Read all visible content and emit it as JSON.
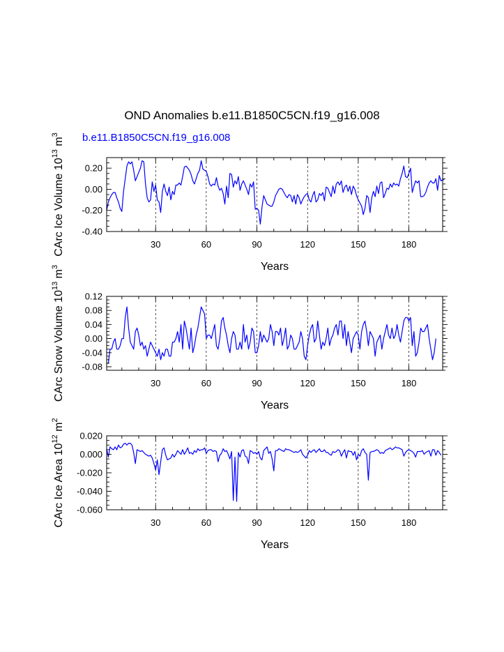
{
  "page_title": "OND Anomalies b.e11.B1850C5CN.f19_g16.008",
  "case_label": "b.e11.B1850C5CN.f19_g16.008",
  "line_color": "#0000ff",
  "chart_data": [
    {
      "type": "line",
      "name": "ice-volume",
      "xlabel": "Years",
      "ylabel_base": "CArc Ice Volume 10",
      "ylabel_exp": "13",
      "ylabel_unit": " m",
      "ylabel_unit_exp": "3",
      "xlim": [
        1,
        200
      ],
      "ylim": [
        -0.4,
        0.3
      ],
      "xticks": [
        30,
        60,
        90,
        120,
        150,
        180
      ],
      "yticks": [
        -0.4,
        -0.2,
        0.0,
        0.2
      ],
      "ytick_labels": [
        "-0.40",
        "-0.20",
        "0.00",
        "0.20"
      ],
      "yminor_step": 0.05,
      "gridlines_x": [
        30,
        60,
        90,
        120,
        150,
        180
      ],
      "series": [
        {
          "name": "b.e11.B1850C5CN.f19_g16.008",
          "x_start": 1,
          "values": [
            -0.2,
            -0.12,
            -0.08,
            -0.05,
            -0.03,
            -0.03,
            -0.08,
            -0.12,
            -0.18,
            -0.21,
            -0.02,
            0.1,
            0.22,
            0.26,
            0.24,
            0.26,
            0.18,
            0.08,
            0.12,
            0.16,
            0.2,
            0.27,
            0.26,
            0.05,
            -0.08,
            -0.12,
            -0.1,
            0.07,
            -0.02,
            0.04,
            -0.1,
            -0.12,
            -0.22,
            -0.02,
            0.05,
            -0.02,
            -0.06,
            0.02,
            -0.1,
            -0.02,
            -0.05,
            0.04,
            0.04,
            0.06,
            0.04,
            0.12,
            0.21,
            0.22,
            0.2,
            0.18,
            0.14,
            0.08,
            0.05,
            0.1,
            0.15,
            0.18,
            0.27,
            0.19,
            0.18,
            0.17,
            0.12,
            0.05,
            0.03,
            0.05,
            0.04,
            0.11,
            0.03,
            -0.01,
            0.01,
            -0.04,
            -0.14,
            0.03,
            -0.08,
            0.15,
            0.14,
            0.02,
            0.08,
            0.05,
            0.12,
            -0.01,
            0.05,
            0.08,
            0.04,
            0.0,
            -0.05,
            0.05,
            0.02,
            0.07,
            -0.19,
            -0.18,
            -0.2,
            -0.33,
            -0.17,
            -0.06,
            -0.1,
            -0.14,
            -0.15,
            -0.16,
            -0.16,
            -0.12,
            -0.06,
            -0.03,
            0.0,
            0.01,
            0.0,
            -0.03,
            -0.06,
            -0.08,
            -0.05,
            -0.06,
            -0.12,
            -0.06,
            -0.14,
            -0.05,
            -0.08,
            -0.14,
            -0.1,
            -0.07,
            -0.05,
            -0.04,
            -0.1,
            -0.12,
            -0.06,
            -0.02,
            -0.12,
            -0.1,
            -0.04,
            -0.06,
            -0.03,
            -0.11,
            0.02,
            0.01,
            -0.03,
            -0.07,
            0.03,
            -0.04,
            0.05,
            0.07,
            0.04,
            0.08,
            -0.03,
            0.02,
            0.04,
            -0.02,
            0.03,
            -0.05,
            0.03,
            0.0,
            -0.06,
            -0.1,
            -0.13,
            -0.16,
            -0.24,
            -0.18,
            -0.06,
            -0.08,
            -0.22,
            -0.08,
            -0.02,
            -0.07,
            0.03,
            -0.04,
            0.06,
            0.07,
            -0.08,
            -0.04,
            0.01,
            0.0,
            0.05,
            0.02,
            0.06,
            0.04,
            0.05,
            0.03,
            0.1,
            0.15,
            0.22,
            0.12,
            0.11,
            0.15,
            0.2,
            -0.03,
            0.03,
            0.08,
            0.06,
            0.08,
            -0.07,
            -0.07,
            -0.06,
            -0.03,
            0.02,
            0.06,
            0.08,
            0.06,
            0.06,
            0.1,
            -0.01,
            0.13,
            0.08,
            0.09,
            0.09
          ]
        }
      ]
    },
    {
      "type": "line",
      "name": "snow-volume",
      "xlabel": "Years",
      "ylabel_base": "CArc Snow Volume 10",
      "ylabel_exp": "13",
      "ylabel_unit": " m",
      "ylabel_unit_exp": "3",
      "xlim": [
        1,
        200
      ],
      "ylim": [
        -0.09,
        0.12
      ],
      "xticks": [
        30,
        60,
        90,
        120,
        150,
        180
      ],
      "yticks": [
        -0.08,
        -0.04,
        0.0,
        0.04,
        0.08,
        0.12
      ],
      "ytick_labels": [
        "-0.08",
        "-0.04",
        "0.00",
        "0.04",
        "0.08",
        "0.12"
      ],
      "yminor_step": 0.01,
      "gridlines_x": [
        30,
        60,
        90,
        120,
        150,
        180
      ],
      "series": [
        {
          "name": "b.e11.B1850C5CN.f19_g16.008",
          "x_start": 1,
          "values": [
            -0.07,
            -0.07,
            -0.03,
            -0.03,
            -0.01,
            0.0,
            -0.03,
            -0.03,
            -0.02,
            0.0,
            0.0,
            0.06,
            0.09,
            0.03,
            -0.01,
            -0.02,
            -0.03,
            0.02,
            0.03,
            0.01,
            -0.02,
            -0.01,
            -0.03,
            -0.02,
            -0.05,
            -0.03,
            -0.01,
            -0.02,
            -0.03,
            -0.04,
            -0.05,
            -0.03,
            -0.06,
            -0.04,
            -0.05,
            -0.03,
            -0.03,
            -0.05,
            -0.05,
            -0.01,
            -0.01,
            0.0,
            0.02,
            -0.01,
            0.04,
            -0.03,
            0.05,
            0.03,
            0.0,
            -0.03,
            0.03,
            -0.04,
            -0.02,
            0.01,
            0.03,
            0.06,
            0.09,
            0.08,
            0.07,
            0.0,
            0.01,
            0.01,
            0.0,
            0.02,
            0.04,
            -0.02,
            -0.03,
            0.0,
            0.05,
            0.06,
            0.03,
            0.01,
            -0.02,
            -0.04,
            0.0,
            0.02,
            0.01,
            -0.03,
            -0.03,
            -0.01,
            -0.03,
            0.04,
            -0.01,
            0.01,
            -0.03,
            -0.01,
            0.03,
            0.02,
            -0.04,
            -0.04,
            -0.02,
            0.02,
            -0.01,
            0.01,
            0.0,
            -0.01,
            0.0,
            0.04,
            0.02,
            -0.02,
            0.02,
            0.02,
            0.01,
            0.03,
            -0.02,
            0.0,
            0.03,
            -0.03,
            -0.02,
            0.01,
            0.0,
            -0.03,
            -0.03,
            -0.02,
            -0.01,
            0.02,
            0.0,
            -0.05,
            -0.06,
            -0.02,
            0.01,
            0.03,
            0.04,
            -0.01,
            0.0,
            0.05,
            0.01,
            -0.03,
            -0.01,
            -0.02,
            0.0,
            0.03,
            -0.02,
            0.0,
            0.01,
            0.03,
            0.04,
            0.01,
            0.05,
            0.05,
            0.0,
            0.04,
            -0.02,
            0.02,
            -0.01,
            -0.04,
            0.0,
            0.01,
            0.02,
            0.01,
            -0.03,
            0.02,
            0.04,
            0.05,
            0.02,
            -0.02,
            0.02,
            0.01,
            0.0,
            -0.05,
            -0.01,
            0.0,
            0.01,
            -0.03,
            0.0,
            0.02,
            0.04,
            0.01,
            0.0,
            0.03,
            0.0,
            0.01,
            0.04,
            0.01,
            -0.01,
            0.02,
            0.05,
            0.06,
            0.06,
            0.05,
            0.06,
            -0.02,
            0.02,
            -0.05,
            -0.04,
            -0.01,
            0.03,
            0.02,
            0.02,
            0.03,
            0.04,
            0.0,
            -0.03,
            -0.06,
            -0.04,
            0.0
          ]
        }
      ]
    },
    {
      "type": "line",
      "name": "ice-area",
      "xlabel": "Years",
      "ylabel_base": "CArc Ice Area 10",
      "ylabel_exp": "12",
      "ylabel_unit": " m",
      "ylabel_unit_exp": "2",
      "xlim": [
        1,
        200
      ],
      "ylim": [
        -0.06,
        0.02
      ],
      "xticks": [
        30,
        60,
        90,
        120,
        150,
        180
      ],
      "yticks": [
        -0.06,
        -0.04,
        -0.02,
        0.0,
        0.02
      ],
      "ytick_labels": [
        "-0.060",
        "-0.040",
        "-0.020",
        "0.000",
        "0.020"
      ],
      "yminor_step": 0.005,
      "gridlines_x": [
        30,
        60,
        90,
        120,
        150,
        180
      ],
      "series": [
        {
          "name": "b.e11.B1850C5CN.f19_g16.008",
          "x_start": 1,
          "values": [
            0.006,
            -0.003,
            0.008,
            0.006,
            0.005,
            0.008,
            0.005,
            0.01,
            0.007,
            0.008,
            0.011,
            0.012,
            0.01,
            0.012,
            0.012,
            0.01,
            0.002,
            -0.01,
            0.005,
            0.004,
            0.003,
            0.004,
            0.002,
            0.0,
            -0.001,
            -0.002,
            -0.001,
            -0.004,
            -0.01,
            -0.017,
            -0.006,
            -0.022,
            -0.008,
            0.005,
            0.007,
            -0.001,
            -0.006,
            -0.005,
            -0.004,
            0.0,
            -0.003,
            0.0,
            0.004,
            0.002,
            0.0,
            0.005,
            0.0,
            0.003,
            0.007,
            0.001,
            0.002,
            0.0,
            0.004,
            0.002,
            0.006,
            0.004,
            0.005,
            0.005,
            0.007,
            0.001,
            0.004,
            0.005,
            0.005,
            0.003,
            0.004,
            0.003,
            -0.008,
            -0.001,
            0.001,
            0.006,
            0.003,
            0.004,
            0.0,
            -0.005,
            0.003,
            -0.05,
            -0.003,
            -0.051,
            0.002,
            -0.003,
            0.004,
            0.005,
            -0.002,
            -0.003,
            -0.01,
            0.004,
            0.003,
            0.001,
            0.002,
            0.0,
            0.003,
            -0.004,
            -0.006,
            0.004,
            0.006,
            0.008,
            0.001,
            0.003,
            -0.005,
            -0.018,
            0.004,
            0.004,
            0.006,
            0.005,
            0.004,
            0.003,
            0.006,
            0.005,
            0.005,
            0.004,
            0.003,
            0.002,
            0.003,
            0.002,
            0.003,
            0.005,
            0.0,
            -0.002,
            -0.004,
            -0.001,
            0.004,
            0.002,
            0.004,
            0.005,
            0.002,
            0.004,
            0.006,
            0.003,
            0.003,
            0.005,
            0.002,
            0.002,
            0.0,
            -0.001,
            0.003,
            0.002,
            0.003,
            0.005,
            0.004,
            -0.002,
            0.002,
            0.005,
            -0.004,
            0.004,
            0.003,
            0.003,
            -0.001,
            0.003,
            -0.006,
            0.0,
            -0.002,
            0.004,
            0.006,
            0.002,
            0.0,
            -0.028,
            0.002,
            0.003,
            0.003,
            0.004,
            0.005,
            0.004,
            0.001,
            0.002,
            0.001,
            0.004,
            0.005,
            0.006,
            0.007,
            0.005,
            0.006,
            0.008,
            0.007,
            0.007,
            0.006,
            0.005,
            -0.002,
            0.002,
            0.004,
            0.005,
            0.004,
            0.003,
            0.001,
            -0.003,
            0.003,
            0.003,
            0.003,
            0.004,
            0.0,
            0.002,
            0.003,
            0.004,
            -0.002,
            0.005,
            0.005,
            -0.001,
            0.004,
            0.002,
            -0.001
          ]
        }
      ]
    }
  ]
}
